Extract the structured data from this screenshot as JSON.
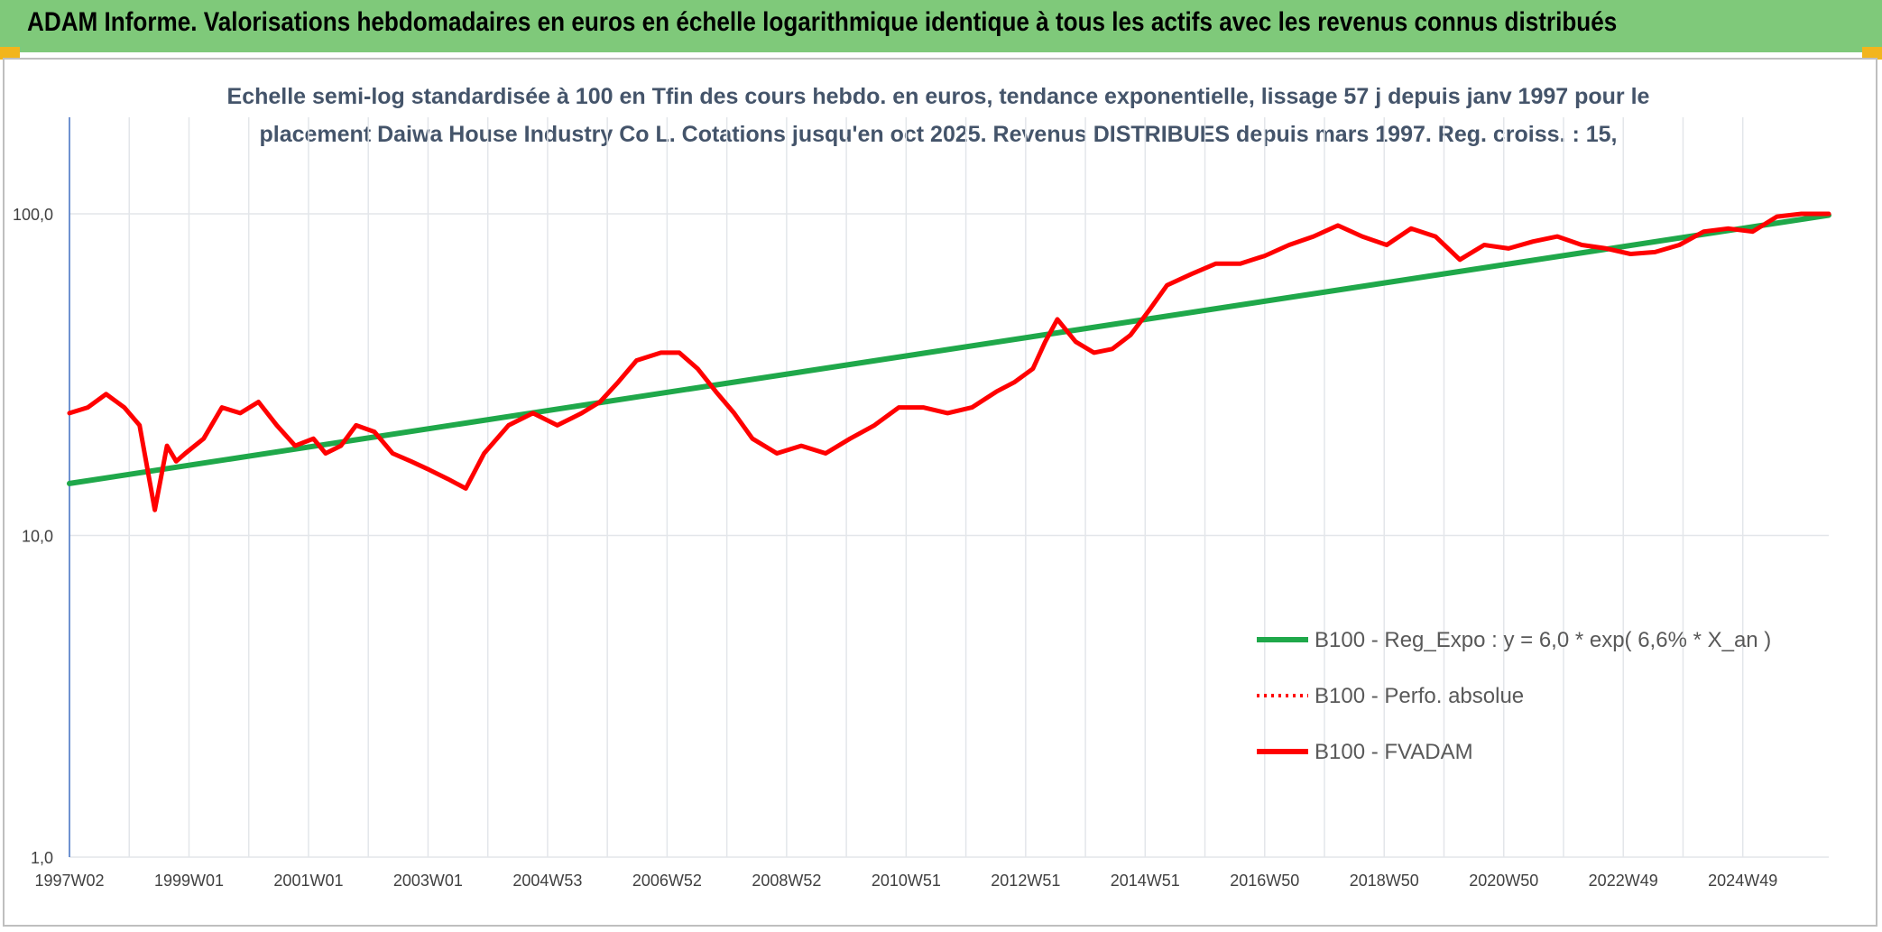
{
  "banner": {
    "title": "ADAM Informe. Valorisations hebdomadaires en euros en échelle logarithmique identique à tous les actifs avec les revenus connus distribués"
  },
  "chart_data": {
    "type": "line",
    "title_line1": "Echelle semi-log standardisée à 100 en Tfin des cours hebdo. en euros, tendance exponentielle, lissage 57 j depuis janv 1997 pour le",
    "title_line2": "placement Daiwa House Industry Co L. Cotations jusqu'en oct 2025. Revenus DISTRIBUES depuis mars 1997. Reg. croiss. : 15,",
    "yscale": "log",
    "ylim": [
      1,
      100
    ],
    "yticks": [
      "1,0",
      "10,0",
      "100,0"
    ],
    "xlim": [
      1997.0,
      2025.85
    ],
    "xticks": [
      "1997W02",
      "1999W01",
      "2001W01",
      "2003W01",
      "2004W53",
      "2006W52",
      "2008W52",
      "2010W51",
      "2012W51",
      "2014W51",
      "2016W50",
      "2018W50",
      "2020W50",
      "2022W49",
      "2024W49"
    ],
    "grid": "vertical",
    "legend_position": "bottom-right",
    "colors": {
      "trend": "#1fa84a",
      "perf": "#ff0000",
      "fvadam": "#ff0000"
    },
    "series": [
      {
        "name": "B100 - Reg_Expo : y = 6,0 * exp( 6,6% *  X_an )",
        "style": "solid-green",
        "x": [
          1997.0,
          2025.85
        ],
        "values": [
          14.5,
          99.0
        ]
      },
      {
        "name": "B100 - Perfo. absolue",
        "style": "dotted-red",
        "x": [],
        "values": []
      },
      {
        "name": "B100 - FVADAM",
        "style": "solid-red",
        "x": [
          1997.0,
          1997.3,
          1997.6,
          1997.9,
          1998.15,
          1998.4,
          1998.6,
          1998.75,
          1998.9,
          1999.2,
          1999.5,
          1999.8,
          2000.1,
          2000.4,
          2000.7,
          2001.0,
          2001.2,
          2001.45,
          2001.7,
          2002.0,
          2002.3,
          2002.6,
          2002.9,
          2003.2,
          2003.5,
          2003.8,
          2004.2,
          2004.6,
          2005.0,
          2005.4,
          2005.7,
          2006.0,
          2006.3,
          2006.7,
          2007.0,
          2007.3,
          2007.6,
          2007.9,
          2008.2,
          2008.6,
          2009.0,
          2009.4,
          2009.8,
          2010.2,
          2010.6,
          2011.0,
          2011.4,
          2011.8,
          2012.2,
          2012.5,
          2012.8,
          2013.0,
          2013.2,
          2013.5,
          2013.8,
          2014.1,
          2014.4,
          2014.7,
          2015.0,
          2015.4,
          2015.8,
          2016.2,
          2016.6,
          2017.0,
          2017.4,
          2017.8,
          2018.2,
          2018.6,
          2019.0,
          2019.4,
          2019.8,
          2020.2,
          2020.6,
          2021.0,
          2021.4,
          2021.8,
          2022.2,
          2022.6,
          2023.0,
          2023.4,
          2023.8,
          2024.2,
          2024.6,
          2025.0,
          2025.4,
          2025.85
        ],
        "values": [
          24,
          25,
          27.5,
          25,
          22,
          12,
          19,
          17,
          18,
          20,
          25,
          24,
          26,
          22,
          19,
          20,
          18,
          19,
          22,
          21,
          18,
          17,
          16,
          15,
          14,
          18,
          22,
          24,
          22,
          24,
          26,
          30,
          35,
          37,
          37,
          33,
          28,
          24,
          20,
          18,
          19,
          18,
          20,
          22,
          25,
          25,
          24,
          25,
          28,
          30,
          33,
          40,
          47,
          40,
          37,
          38,
          42,
          50,
          60,
          65,
          70,
          70,
          74,
          80,
          85,
          92,
          85,
          80,
          90,
          85,
          72,
          80,
          78,
          82,
          85,
          80,
          78,
          75,
          76,
          80,
          88,
          90,
          88,
          98,
          100,
          100
        ]
      }
    ]
  }
}
